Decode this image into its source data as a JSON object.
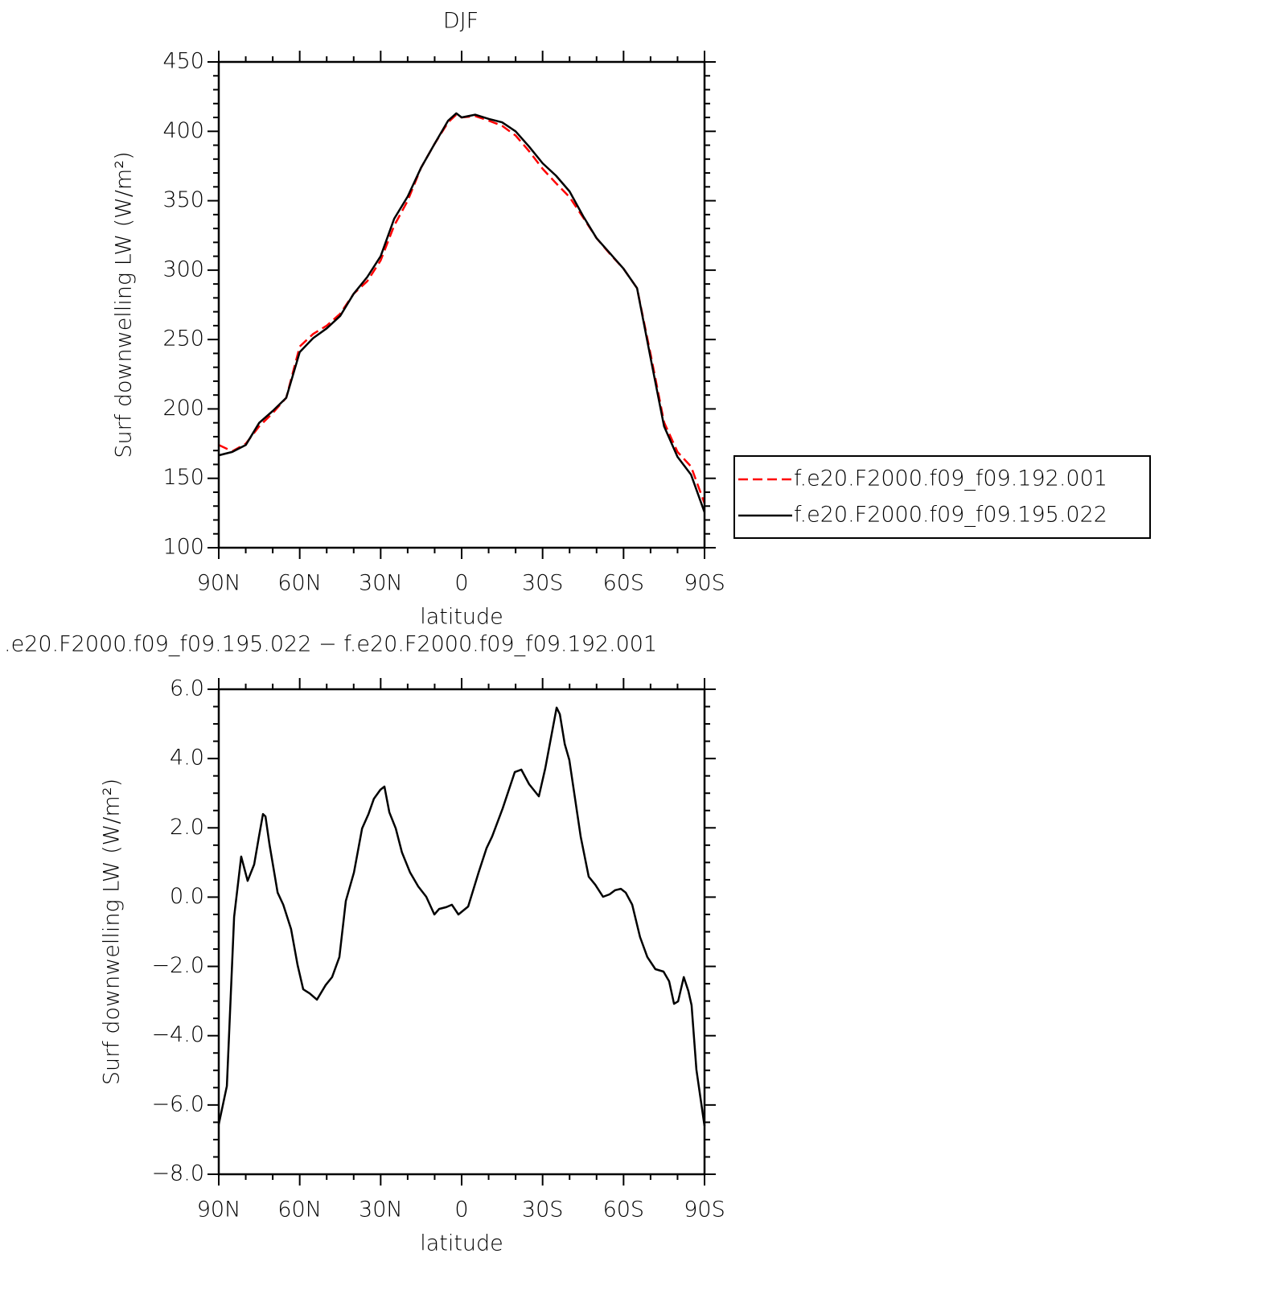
{
  "chart_data": [
    {
      "type": "line",
      "title": "DJF",
      "xlabel": "latitude",
      "ylabel": "Surf downwelling LW (W/m²)",
      "x": [
        90,
        85,
        80,
        75,
        70,
        65,
        60,
        55,
        50,
        45,
        40,
        35,
        30,
        25,
        20,
        15,
        10,
        5,
        2,
        0,
        -5,
        -10,
        -15,
        -20,
        -25,
        -30,
        -35,
        -40,
        -45,
        -50,
        -55,
        -60,
        -65,
        -70,
        -75,
        -80,
        -85,
        -90
      ],
      "xlim": [
        90,
        -90
      ],
      "xticks": [
        {
          "value": 90,
          "label": "90N"
        },
        {
          "value": 60,
          "label": "60N"
        },
        {
          "value": 30,
          "label": "30N"
        },
        0,
        {
          "value": -30,
          "label": "30S"
        },
        {
          "value": -60,
          "label": "60S"
        },
        {
          "value": -90,
          "label": "90S"
        }
      ],
      "xminorticks": [
        80,
        70,
        50,
        40,
        20,
        10,
        -10,
        -20,
        -40,
        -50,
        -70,
        -80
      ],
      "ylim": [
        100,
        450
      ],
      "yticks": [
        100,
        150,
        200,
        250,
        300,
        350,
        400,
        450
      ],
      "yminorticks": [
        110,
        120,
        130,
        140,
        160,
        170,
        180,
        190,
        210,
        220,
        230,
        240,
        260,
        270,
        280,
        290,
        310,
        320,
        330,
        340,
        360,
        370,
        380,
        390,
        410,
        420,
        430,
        440
      ],
      "legend": "outside right",
      "series": [
        {
          "name": "f.e20.F2000.f09_f09.192.001",
          "color": "#ff0000",
          "style": "dashed",
          "values": [
            174,
            169.5,
            175,
            187.5,
            197,
            208,
            245,
            254,
            260,
            268.6,
            283,
            292,
            307,
            332,
            350,
            374,
            391,
            406.5,
            412,
            410,
            411,
            407.7,
            404,
            397,
            385.7,
            373,
            362.6,
            352.6,
            338,
            323,
            311.5,
            301,
            287,
            239.6,
            190.4,
            169,
            158.5,
            132
          ]
        },
        {
          "name": "f.e20.F2000.f09_f09.195.022",
          "color": "#000000",
          "style": "solid",
          "values": [
            166.6,
            169,
            174,
            190,
            198.5,
            208,
            241,
            251,
            258,
            267,
            283,
            295,
            310,
            337,
            353,
            374,
            391,
            407.7,
            413,
            410,
            412,
            409,
            406.5,
            400,
            389,
            377,
            368,
            356.7,
            339,
            323,
            312,
            301,
            287,
            236.8,
            187.5,
            165.5,
            152.7,
            125.5
          ]
        }
      ]
    },
    {
      "type": "line",
      "title": ".e20.F2000.f09_f09.195.022 − f.e20.F2000.f09_f09.192.001",
      "xlabel": "latitude",
      "ylabel": "Surf downwelling LW (W/m²)",
      "x": [
        90,
        87.0,
        84.3,
        81.7,
        79.3,
        76.9,
        75.1,
        73.6,
        72.7,
        71.2,
        68.2,
        66.1,
        63.2,
        60.8,
        58.7,
        56.3,
        53.6,
        50.4,
        48.0,
        45.3,
        42.9,
        39.9,
        36.9,
        34.5,
        32.5,
        30.1,
        28.6,
        26.8,
        24.4,
        22.1,
        19.1,
        16.1,
        13.1,
        10.1,
        8.3,
        5.7,
        3.6,
        1.2,
        -2.4,
        -6.3,
        -9.2,
        -11.3,
        -15.2,
        -19.7,
        -22.1,
        -25.0,
        -28.6,
        -31.0,
        -35.2,
        -36.4,
        -38.2,
        -39.9,
        -44.1,
        -47.1,
        -49.5,
        -52.4,
        -54.8,
        -56.9,
        -59.0,
        -60.8,
        -63.2,
        -66.1,
        -68.8,
        -71.8,
        -74.8,
        -76.9,
        -78.7,
        -80.2,
        -82.3,
        -84.0,
        -85.2,
        -87.0,
        -90
      ],
      "xlim": [
        90,
        -90
      ],
      "xticks": [
        {
          "value": 90,
          "label": "90N"
        },
        {
          "value": 60,
          "label": "60N"
        },
        {
          "value": 30,
          "label": "30N"
        },
        0,
        {
          "value": -30,
          "label": "30S"
        },
        {
          "value": -60,
          "label": "60S"
        },
        {
          "value": -90,
          "label": "90S"
        }
      ],
      "xminorticks": [
        80,
        70,
        50,
        40,
        20,
        10,
        -10,
        -20,
        -40,
        -50,
        -70,
        -80
      ],
      "ylim": [
        -8,
        6
      ],
      "yticks": [
        {
          "value": -8,
          "label": "−8.0"
        },
        {
          "value": -6,
          "label": "−6.0"
        },
        {
          "value": -4,
          "label": "−4.0"
        },
        {
          "value": -2,
          "label": "−2.0"
        },
        {
          "value": 0,
          "label": "0.0"
        },
        {
          "value": 2,
          "label": "2.0"
        },
        {
          "value": 4,
          "label": "4.0"
        },
        {
          "value": 6,
          "label": "6.0"
        }
      ],
      "yminorticks": [
        -7.5,
        -7,
        -6.5,
        -5.5,
        -5,
        -4.5,
        -3.5,
        -3,
        -2.5,
        -1.5,
        -1,
        -0.5,
        0.5,
        1,
        1.5,
        2.5,
        3,
        3.5,
        4.5,
        5,
        5.5
      ],
      "series": [
        {
          "color": "#000000",
          "style": "solid",
          "values": [
            -6.56,
            -5.45,
            -0.57,
            1.17,
            0.47,
            0.94,
            1.75,
            2.4,
            2.33,
            1.52,
            0.13,
            -0.22,
            -0.92,
            -1.96,
            -2.66,
            -2.78,
            -2.96,
            -2.54,
            -2.31,
            -1.73,
            -0.11,
            0.71,
            1.98,
            2.4,
            2.84,
            3.1,
            3.19,
            2.45,
            1.98,
            1.29,
            0.71,
            0.31,
            0.01,
            -0.5,
            -0.34,
            -0.29,
            -0.22,
            -0.5,
            -0.27,
            0.71,
            1.41,
            1.75,
            2.56,
            3.61,
            3.68,
            3.26,
            2.91,
            3.72,
            5.47,
            5.28,
            4.42,
            3.96,
            1.75,
            0.59,
            0.36,
            0.01,
            0.08,
            0.2,
            0.24,
            0.13,
            -0.22,
            -1.15,
            -1.73,
            -2.08,
            -2.15,
            -2.43,
            -3.08,
            -3.01,
            -2.31,
            -2.71,
            -3.12,
            -4.98,
            -6.61
          ]
        }
      ]
    }
  ]
}
